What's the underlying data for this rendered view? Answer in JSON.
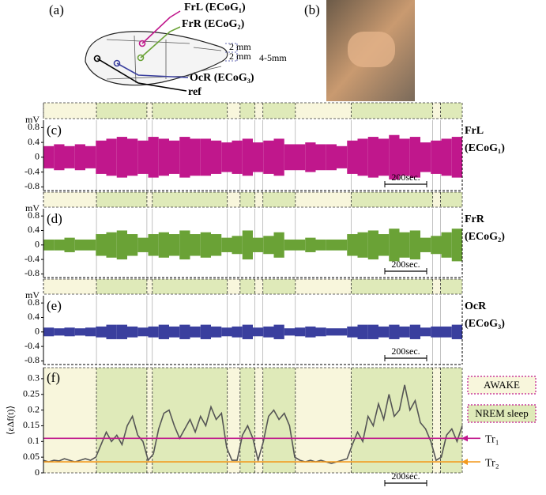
{
  "figure": {
    "panel_a": {
      "label": "(a)",
      "electrodes": [
        {
          "label": "FrL (ECoG₁)",
          "color": "#c0178c"
        },
        {
          "label": "FrR (ECoG₂)",
          "color": "#6aa236"
        },
        {
          "label": "OcR (ECoG₃)",
          "color": "#3a3f9e"
        },
        {
          "label": "ref",
          "color": "#000000"
        }
      ],
      "dimensions": [
        "2 mm",
        "2 mm",
        "4-5mm"
      ]
    },
    "panel_b": {
      "label": "(b)"
    }
  },
  "chart_data": [
    {
      "type": "band",
      "label": "(c)",
      "channel": [
        "FrL",
        "(ECoG₁)"
      ],
      "color": "#c0178c",
      "ylabel": "mV",
      "x": [
        25,
        75,
        125,
        175,
        225,
        275,
        325,
        375,
        425,
        475,
        525,
        575,
        625,
        675,
        725,
        775,
        825,
        875,
        925,
        975,
        1025,
        1075,
        1125,
        1175,
        1225,
        1275,
        1325,
        1375,
        1425,
        1475,
        1525,
        1575,
        1625,
        1675,
        1725,
        1775,
        1825,
        1875,
        1925,
        1975
      ],
      "values": [
        0.3,
        0.35,
        0.3,
        0.35,
        0.3,
        0.45,
        0.5,
        0.55,
        0.5,
        0.45,
        0.55,
        0.5,
        0.45,
        0.55,
        0.5,
        0.5,
        0.45,
        0.4,
        0.45,
        0.5,
        0.4,
        0.45,
        0.5,
        0.35,
        0.35,
        0.4,
        0.35,
        0.35,
        0.3,
        0.45,
        0.5,
        0.55,
        0.5,
        0.6,
        0.5,
        0.55,
        0.4,
        0.45,
        0.5,
        0.55
      ],
      "xlim": [
        0,
        2000
      ],
      "ylim": [
        -0.9,
        1.0
      ],
      "yticks": [
        0.8,
        0.4,
        0,
        -0.4,
        -0.8
      ],
      "scalebar": {
        "label": "200sec.",
        "value": 200
      }
    },
    {
      "type": "band",
      "label": "(d)",
      "channel": [
        "FrR",
        "(ECoG₂)"
      ],
      "color": "#6aa236",
      "ylabel": "mV",
      "x": [
        25,
        75,
        125,
        175,
        225,
        275,
        325,
        375,
        425,
        475,
        525,
        575,
        625,
        675,
        725,
        775,
        825,
        875,
        925,
        975,
        1025,
        1075,
        1125,
        1175,
        1225,
        1275,
        1325,
        1375,
        1425,
        1475,
        1525,
        1575,
        1625,
        1675,
        1725,
        1775,
        1825,
        1875,
        1925,
        1975
      ],
      "values": [
        0.15,
        0.15,
        0.2,
        0.15,
        0.15,
        0.3,
        0.35,
        0.4,
        0.3,
        0.2,
        0.3,
        0.35,
        0.3,
        0.4,
        0.3,
        0.35,
        0.3,
        0.2,
        0.25,
        0.4,
        0.2,
        0.25,
        0.35,
        0.15,
        0.15,
        0.2,
        0.15,
        0.15,
        0.15,
        0.3,
        0.35,
        0.4,
        0.3,
        0.45,
        0.35,
        0.4,
        0.2,
        0.25,
        0.35,
        0.45
      ],
      "xlim": [
        0,
        2000
      ],
      "ylim": [
        -0.9,
        1.0
      ],
      "yticks": [
        0.8,
        0.4,
        0,
        -0.4,
        -0.8
      ],
      "scalebar": {
        "label": "200sec.",
        "value": 200
      }
    },
    {
      "type": "band",
      "label": "(e)",
      "channel": [
        "OcR",
        "(ECoG₃)"
      ],
      "color": "#3a3f9e",
      "ylabel": "mV",
      "x": [
        25,
        75,
        125,
        175,
        225,
        275,
        325,
        375,
        425,
        475,
        525,
        575,
        625,
        675,
        725,
        775,
        825,
        875,
        925,
        975,
        1025,
        1075,
        1125,
        1175,
        1225,
        1275,
        1325,
        1375,
        1425,
        1475,
        1525,
        1575,
        1625,
        1675,
        1725,
        1775,
        1825,
        1875,
        1925,
        1975
      ],
      "values": [
        0.12,
        0.1,
        0.12,
        0.1,
        0.12,
        0.15,
        0.2,
        0.2,
        0.15,
        0.12,
        0.15,
        0.2,
        0.15,
        0.2,
        0.15,
        0.2,
        0.15,
        0.12,
        0.15,
        0.2,
        0.12,
        0.15,
        0.2,
        0.1,
        0.12,
        0.15,
        0.12,
        0.1,
        0.1,
        0.15,
        0.2,
        0.2,
        0.15,
        0.2,
        0.15,
        0.2,
        0.12,
        0.15,
        0.15,
        0.2
      ],
      "xlim": [
        0,
        2000
      ],
      "ylim": [
        -0.9,
        1.0
      ],
      "yticks": [
        0.8,
        0.4,
        0,
        -0.4,
        -0.8
      ],
      "scalebar": {
        "label": "200sec.",
        "value": 200
      }
    },
    {
      "type": "line",
      "label": "(f)",
      "ylabel": "⟨εΔf(t)⟩",
      "color": "#555555",
      "x": [
        0,
        25,
        50,
        75,
        100,
        125,
        150,
        175,
        200,
        225,
        250,
        275,
        300,
        325,
        350,
        375,
        400,
        425,
        450,
        475,
        500,
        525,
        550,
        575,
        600,
        625,
        650,
        675,
        700,
        725,
        750,
        775,
        800,
        825,
        850,
        875,
        900,
        925,
        950,
        975,
        1000,
        1025,
        1050,
        1075,
        1100,
        1125,
        1150,
        1175,
        1200,
        1225,
        1250,
        1275,
        1300,
        1325,
        1350,
        1375,
        1400,
        1425,
        1450,
        1475,
        1500,
        1525,
        1550,
        1575,
        1600,
        1625,
        1650,
        1675,
        1700,
        1725,
        1750,
        1775,
        1800,
        1825,
        1850,
        1875,
        1900,
        1925,
        1950,
        1975,
        2000
      ],
      "values": [
        0.04,
        0.035,
        0.04,
        0.038,
        0.045,
        0.04,
        0.035,
        0.04,
        0.045,
        0.04,
        0.05,
        0.09,
        0.13,
        0.1,
        0.12,
        0.09,
        0.15,
        0.18,
        0.12,
        0.1,
        0.04,
        0.06,
        0.14,
        0.19,
        0.2,
        0.15,
        0.11,
        0.14,
        0.17,
        0.13,
        0.18,
        0.15,
        0.21,
        0.17,
        0.19,
        0.08,
        0.04,
        0.04,
        0.12,
        0.15,
        0.11,
        0.04,
        0.1,
        0.18,
        0.2,
        0.17,
        0.19,
        0.15,
        0.05,
        0.04,
        0.035,
        0.04,
        0.035,
        0.04,
        0.035,
        0.03,
        0.035,
        0.04,
        0.045,
        0.09,
        0.13,
        0.1,
        0.18,
        0.15,
        0.22,
        0.17,
        0.25,
        0.18,
        0.2,
        0.28,
        0.2,
        0.23,
        0.16,
        0.14,
        0.1,
        0.04,
        0.05,
        0.12,
        0.14,
        0.1,
        0.15
      ],
      "xlim": [
        0,
        2000
      ],
      "ylim": [
        0,
        0.335
      ],
      "yticks": [
        0,
        0.05,
        0.1,
        0.15,
        0.2,
        0.25,
        0.3
      ],
      "hlines": [
        {
          "label": "Tr₁",
          "value": 0.11,
          "color": "#c0178c"
        },
        {
          "label": "Tr₂",
          "value": 0.035,
          "color": "#f39a1e"
        }
      ],
      "bands": [
        {
          "name": "AWAKE",
          "color": "#f8f6dc",
          "border": "#c0178c",
          "intervals": [
            [
              0,
              253
            ],
            [
              494,
              520
            ],
            [
              878,
              939
            ],
            [
              1010,
              1048
            ],
            [
              1203,
              1470
            ],
            [
              1859,
              1896
            ]
          ]
        },
        {
          "name": "NREM sleep",
          "color": "#dfeab9",
          "border": "#c0178c",
          "intervals": [
            [
              253,
              494
            ],
            [
              520,
              878
            ],
            [
              939,
              1010
            ],
            [
              1048,
              1203
            ],
            [
              1470,
              1859
            ],
            [
              1896,
              2000
            ]
          ]
        }
      ],
      "scalebar": {
        "label": "200sec.",
        "value": 200
      }
    }
  ]
}
